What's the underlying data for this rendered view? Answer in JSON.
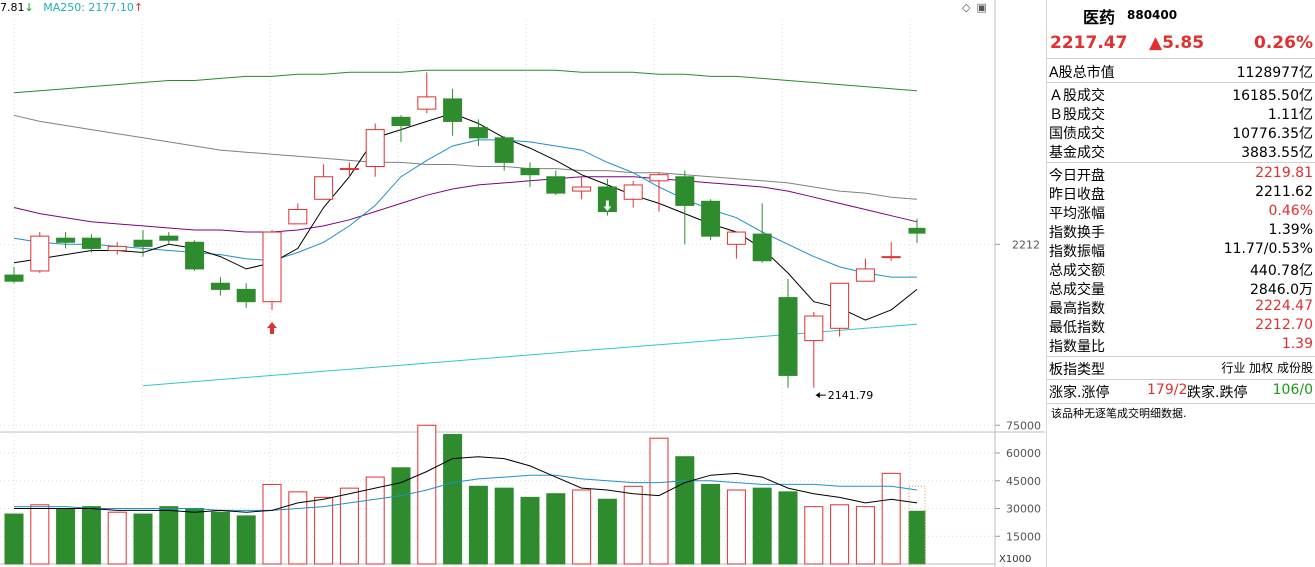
{
  "legend": {
    "ma1": "7.81",
    "ma1_arrow": "↓",
    "ma250_label": "MA250: 2177.10",
    "ma250_arrow": "↑"
  },
  "colors": {
    "up": "#e03030",
    "down": "#2e8b2e",
    "ma5": "#000000",
    "ma10": "#1e90c8",
    "ma20": "#800080",
    "ma60": "#808080",
    "ma120": "#2a8a2a",
    "ma250": "#30c8c8",
    "vol_ma5": "#000000",
    "vol_ma10": "#1e90c8"
  },
  "panel": {
    "name": "医药",
    "code": "880400",
    "price": "2217.47",
    "change": "▲5.85",
    "change_pct": "0.26%",
    "group1": [
      {
        "label": "A股总市值",
        "value": "1128977亿",
        "color": "black"
      }
    ],
    "group2": [
      {
        "label": "Ａ股成交",
        "value": "16185.50亿",
        "color": "black"
      },
      {
        "label": "Ｂ股成交",
        "value": "1.11亿",
        "color": "black"
      },
      {
        "label": "国债成交",
        "value": "10776.35亿",
        "color": "black"
      },
      {
        "label": "基金成交",
        "value": "3883.55亿",
        "color": "black"
      }
    ],
    "group3": [
      {
        "label": "今日开盘",
        "value": "2219.81",
        "color": "red"
      },
      {
        "label": "昨日收盘",
        "value": "2211.62",
        "color": "black"
      },
      {
        "label": "平均涨幅",
        "value": "0.46%",
        "color": "red"
      },
      {
        "label": "指数换手",
        "value": "1.39%",
        "color": "black"
      },
      {
        "label": "指数振幅",
        "value": "11.77/0.53%",
        "color": "black"
      },
      {
        "label": "总成交额",
        "value": "440.78亿",
        "color": "black"
      },
      {
        "label": "总成交量",
        "value": "2846.0万",
        "color": "black"
      },
      {
        "label": "最高指数",
        "value": "2224.47",
        "color": "red"
      },
      {
        "label": "最低指数",
        "value": "2212.70",
        "color": "red"
      },
      {
        "label": "指数量比",
        "value": "1.39",
        "color": "red"
      }
    ],
    "type_row": {
      "label": "板指类型",
      "value": "行业 加权 成份股",
      "color": "black"
    },
    "updown": {
      "up_label": "涨家.涨停",
      "up_value": "179/2",
      "down_label": "跌家.跌停",
      "down_value": "106/0"
    },
    "note": "该品种无逐笔成交明细数据."
  },
  "chart_data": {
    "type": "candlestick",
    "price_tick_label": "2212",
    "low_annotation": "2141.79",
    "volume_ticks": [
      "75000",
      "60000",
      "45000",
      "30000",
      "15000"
    ],
    "volume_unit": "X1000",
    "candles": [
      {
        "o": 2197,
        "c": 2194,
        "h": 2201,
        "l": 2193,
        "v": 27
      },
      {
        "o": 2199,
        "c": 2216,
        "h": 2218,
        "l": 2198,
        "v": 32
      },
      {
        "o": 2215,
        "c": 2213,
        "h": 2218,
        "l": 2210,
        "v": 30
      },
      {
        "o": 2215,
        "c": 2210,
        "h": 2217,
        "l": 2208,
        "v": 31
      },
      {
        "o": 2209,
        "c": 2211,
        "h": 2213,
        "l": 2207,
        "v": 28
      },
      {
        "o": 2214,
        "c": 2211,
        "h": 2219,
        "l": 2206,
        "v": 27
      },
      {
        "o": 2216,
        "c": 2214,
        "h": 2218,
        "l": 2212,
        "v": 31
      },
      {
        "o": 2213,
        "c": 2200,
        "h": 2214,
        "l": 2199,
        "v": 30
      },
      {
        "o": 2193,
        "c": 2190,
        "h": 2196,
        "l": 2187,
        "v": 28
      },
      {
        "o": 2190,
        "c": 2184,
        "h": 2193,
        "l": 2181,
        "v": 26
      },
      {
        "o": 2184,
        "c": 2218,
        "h": 2219,
        "l": 2180,
        "v": 43
      },
      {
        "o": 2222,
        "c": 2229,
        "h": 2232,
        "l": 2222,
        "v": 39
      },
      {
        "o": 2234,
        "c": 2245,
        "h": 2251,
        "l": 2234,
        "v": 36
      },
      {
        "o": 2249,
        "c": 2249,
        "h": 2252,
        "l": 2245,
        "v": 41
      },
      {
        "o": 2250,
        "c": 2268,
        "h": 2271,
        "l": 2245,
        "v": 47
      },
      {
        "o": 2274,
        "c": 2270,
        "h": 2275,
        "l": 2262,
        "v": 52
      },
      {
        "o": 2278,
        "c": 2284,
        "h": 2296,
        "l": 2276,
        "v": 75
      },
      {
        "o": 2283,
        "c": 2272,
        "h": 2288,
        "l": 2265,
        "v": 70
      },
      {
        "o": 2269,
        "c": 2264,
        "h": 2273,
        "l": 2260,
        "v": 42
      },
      {
        "o": 2264,
        "c": 2252,
        "h": 2265,
        "l": 2248,
        "v": 41
      },
      {
        "o": 2249,
        "c": 2246,
        "h": 2252,
        "l": 2240,
        "v": 36
      },
      {
        "o": 2245,
        "c": 2237,
        "h": 2248,
        "l": 2236,
        "v": 38
      },
      {
        "o": 2238,
        "c": 2240,
        "h": 2245,
        "l": 2234,
        "v": 40
      },
      {
        "o": 2240,
        "c": 2228,
        "h": 2244,
        "l": 2226,
        "v": 35
      },
      {
        "o": 2234,
        "c": 2241,
        "h": 2243,
        "l": 2230,
        "v": 42
      },
      {
        "o": 2243,
        "c": 2246,
        "h": 2247,
        "l": 2228,
        "v": 68
      },
      {
        "o": 2245,
        "c": 2231,
        "h": 2248,
        "l": 2212,
        "v": 58
      },
      {
        "o": 2233,
        "c": 2216,
        "h": 2234,
        "l": 2214,
        "v": 43
      },
      {
        "o": 2212,
        "c": 2218,
        "h": 2218,
        "l": 2205,
        "v": 40
      },
      {
        "o": 2217,
        "c": 2204,
        "h": 2232,
        "l": 2203,
        "v": 41
      },
      {
        "o": 2186,
        "c": 2148,
        "h": 2195,
        "l": 2142,
        "v": 39
      },
      {
        "o": 2165,
        "c": 2177,
        "h": 2179,
        "l": 2142,
        "v": 31
      },
      {
        "o": 2171,
        "c": 2193,
        "h": 2193,
        "l": 2167,
        "v": 32
      },
      {
        "o": 2194,
        "c": 2200,
        "h": 2205,
        "l": 2194,
        "v": 31
      },
      {
        "o": 2206,
        "c": 2206,
        "h": 2213,
        "l": 2204,
        "v": 49
      },
      {
        "o": 2219.81,
        "c": 2217.47,
        "h": 2224.47,
        "l": 2212.7,
        "v": 28.5
      }
    ],
    "ma5": [
      2203,
      2205,
      2207,
      2209,
      2209,
      2208,
      2212,
      2210,
      2206,
      2200,
      2203,
      2210,
      2230,
      2245,
      2264,
      2268,
      2272,
      2276,
      2271,
      2264,
      2259,
      2253,
      2246,
      2241,
      2236,
      2232,
      2227,
      2222,
      2218,
      2210,
      2198,
      2184,
      2181,
      2175,
      2180,
      2190
    ],
    "ma10": [
      2215,
      2213,
      2212,
      2212,
      2211,
      2210,
      2209,
      2208,
      2207,
      2205,
      2204,
      2208,
      2213,
      2221,
      2231,
      2245,
      2253,
      2260,
      2263,
      2263,
      2262,
      2260,
      2258,
      2252,
      2247,
      2240,
      2234,
      2229,
      2225,
      2218,
      2212,
      2206,
      2201,
      2198,
      2196,
      2196
    ],
    "ma20": [
      2230,
      2227,
      2225,
      2223,
      2222,
      2221,
      2220,
      2219,
      2219,
      2218,
      2218,
      2219,
      2221,
      2224,
      2228,
      2232,
      2236,
      2239,
      2241,
      2242,
      2243,
      2244,
      2245,
      2245,
      2245,
      2244,
      2243,
      2242,
      2241,
      2240,
      2238,
      2235,
      2232,
      2229,
      2226,
      2223
    ],
    "ma60": [
      2275,
      2272,
      2270,
      2268,
      2266,
      2264,
      2262,
      2260,
      2258,
      2257,
      2256,
      2255,
      2254,
      2253,
      2252,
      2252,
      2251,
      2251,
      2250,
      2250,
      2249,
      2249,
      2248,
      2248,
      2247,
      2247,
      2246,
      2245,
      2244,
      2243,
      2242,
      2240,
      2238,
      2237,
      2235,
      2234
    ],
    "ma120": [
      2286,
      2287,
      2288,
      2289,
      2290,
      2291,
      2292,
      2292,
      2293,
      2294,
      2294,
      2295,
      2295,
      2296,
      2296,
      2296,
      2297,
      2297,
      2297,
      2297,
      2297,
      2297,
      2296,
      2296,
      2296,
      2295,
      2295,
      2294,
      2294,
      2293,
      2292,
      2291,
      2290,
      2289,
      2288,
      2287
    ],
    "ma250": [
      null,
      null,
      null,
      null,
      null,
      2143,
      2144,
      2145,
      2146,
      2147,
      2148,
      2149,
      2150,
      2151,
      2152,
      2153,
      2154,
      2155,
      2156,
      2157,
      2158,
      2159,
      2160,
      2161,
      2162,
      2163,
      2164,
      2165,
      2166,
      2167,
      2168,
      2169,
      2170,
      2171,
      2172,
      2173
    ],
    "vol_ma5": [
      30,
      30,
      30,
      30,
      29,
      29,
      29,
      28,
      29,
      28,
      29,
      33,
      35,
      38,
      41,
      44,
      50,
      57,
      58,
      57,
      53,
      47,
      41,
      40,
      38,
      37,
      44,
      48,
      49,
      47,
      41,
      38,
      36,
      33,
      35,
      33
    ],
    "vol_ma10": [
      31,
      31,
      31,
      30,
      30,
      30,
      30,
      30,
      29,
      29,
      29,
      30,
      31,
      33,
      35,
      37,
      40,
      44,
      46,
      47,
      48,
      48,
      46,
      45,
      44,
      44,
      45,
      45,
      44,
      43,
      43,
      43,
      42,
      42,
      42,
      40
    ]
  }
}
